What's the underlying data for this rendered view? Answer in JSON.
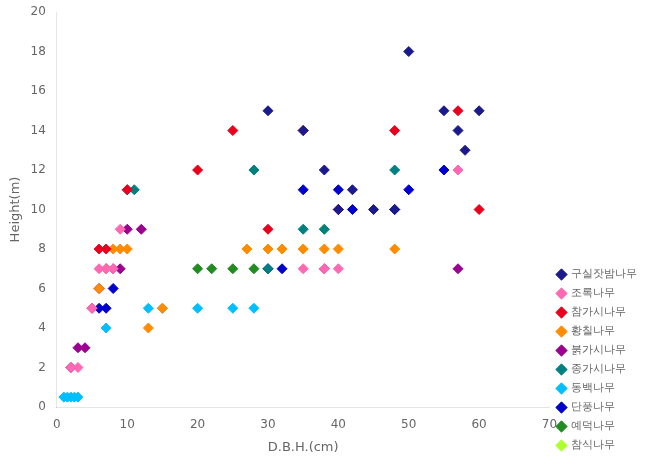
{
  "chart_data": {
    "type": "scatter",
    "xlabel": "D.B.H.(cm)",
    "ylabel": "Height(m)",
    "marker": "diamond",
    "grid": false,
    "legend": "lower right",
    "xlim": [
      0,
      70
    ],
    "ylim": [
      0,
      20
    ],
    "xticks": [
      0,
      10,
      20,
      30,
      40,
      50,
      60,
      70
    ],
    "yticks": [
      0,
      2,
      4,
      6,
      8,
      10,
      12,
      14,
      16,
      18,
      20
    ],
    "series": [
      {
        "name": "구실잣밤나무",
        "color": "#1a1a8c",
        "x": [
          30,
          35,
          38,
          40,
          42,
          45,
          48,
          50,
          55,
          57,
          58,
          60
        ],
        "values": [
          15,
          14,
          12,
          10,
          11,
          10,
          10,
          18,
          15,
          14,
          13,
          15
        ]
      },
      {
        "name": "조록나무",
        "color": "#ff69b4",
        "x": [
          2,
          3,
          5,
          6,
          7,
          8,
          9,
          35,
          38,
          40,
          57
        ],
        "values": [
          2,
          2,
          5,
          7,
          7,
          7,
          9,
          7,
          7,
          7,
          12
        ]
      },
      {
        "name": "참가시나무",
        "color": "#e8001c",
        "x": [
          6,
          7,
          10,
          20,
          25,
          30,
          35,
          40,
          48,
          57,
          60
        ],
        "values": [
          8,
          8,
          11,
          12,
          14,
          9,
          14,
          10,
          14,
          15,
          10
        ]
      },
      {
        "name": "황칠나무",
        "color": "#ff8c00",
        "x": [
          6,
          7,
          8,
          9,
          10,
          13,
          15,
          27,
          30,
          32,
          35,
          38,
          40,
          48
        ],
        "values": [
          6,
          7,
          8,
          8,
          8,
          4,
          5,
          8,
          8,
          8,
          8,
          8,
          8,
          8
        ]
      },
      {
        "name": "붉가시나무",
        "color": "#9b0090",
        "x": [
          2,
          3,
          4,
          5,
          6,
          7,
          8,
          9,
          10,
          12,
          38,
          40,
          57
        ],
        "values": [
          2,
          3,
          3,
          5,
          6,
          7,
          7,
          7,
          9,
          9,
          7,
          10,
          7
        ]
      },
      {
        "name": "종가시나무",
        "color": "#008080",
        "x": [
          10,
          11,
          28,
          30,
          35,
          38,
          48,
          57
        ],
        "values": [
          11,
          11,
          12,
          7,
          9,
          9,
          12,
          12
        ]
      },
      {
        "name": "동백나무",
        "color": "#00bfff",
        "x": [
          1,
          1.5,
          2,
          2.5,
          3,
          7,
          13,
          15,
          20,
          25,
          28
        ],
        "values": [
          0.5,
          0.5,
          0.5,
          0.5,
          0.5,
          4,
          5,
          5,
          5,
          5,
          5
        ]
      },
      {
        "name": "단풍나무",
        "color": "#0000cd",
        "x": [
          6,
          7,
          8,
          30,
          32,
          35,
          40,
          42,
          48,
          50,
          55
        ],
        "values": [
          5,
          5,
          6,
          7,
          7,
          11,
          11,
          10,
          10,
          11,
          12
        ]
      },
      {
        "name": "예덕나무",
        "color": "#228b22",
        "x": [
          20,
          22,
          25,
          28
        ],
        "values": [
          7,
          7,
          7,
          7
        ]
      },
      {
        "name": "참식나무",
        "color": "#adff2f",
        "x": [
          38
        ],
        "values": [
          9
        ]
      }
    ]
  }
}
